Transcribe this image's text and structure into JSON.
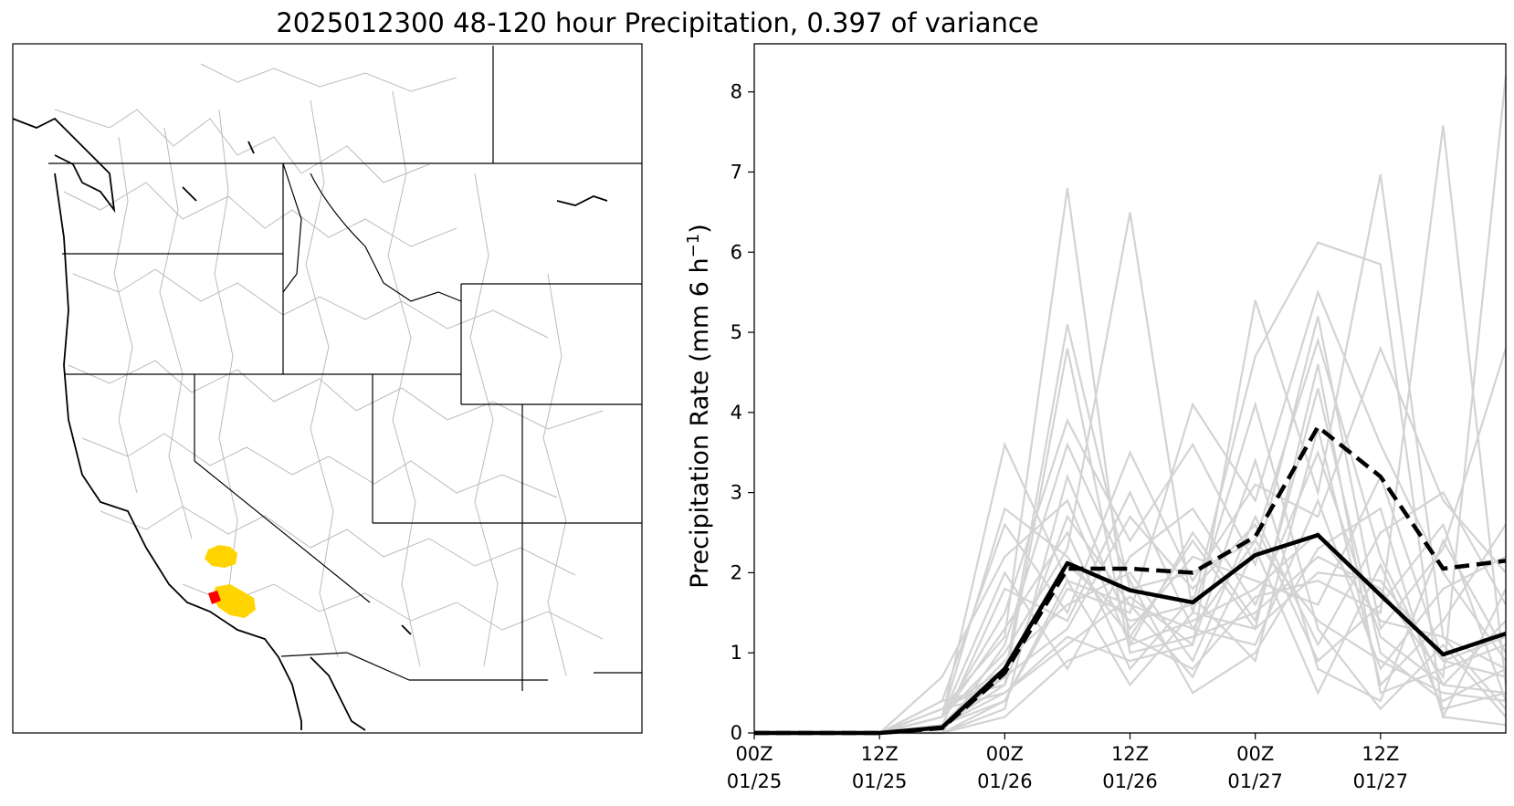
{
  "figure": {
    "title": "2025012300 48-120 hour Precipitation, 0.397 of variance"
  },
  "map": {
    "highlight_colors": {
      "primary": "#ffd400",
      "secondary": "#ff0000"
    },
    "line_colors": {
      "coast": "#000000",
      "basins": "#bbbbbb"
    }
  },
  "chart_data": {
    "type": "line",
    "ylabel": "Precipitation Rate (mm 6 h",
    "ylabel_sup": "−1",
    "ylabel_end": ")",
    "ylim": [
      0,
      8.6
    ],
    "xlim": [
      0,
      72
    ],
    "x": [
      0,
      6,
      12,
      18,
      24,
      30,
      36,
      42,
      48,
      54,
      60,
      66,
      72
    ],
    "yticks": [
      "0",
      "1",
      "2",
      "3",
      "4",
      "5",
      "6",
      "7",
      "8"
    ],
    "xticks": [
      {
        "x": 0,
        "line1": "00Z",
        "line2": "01/25"
      },
      {
        "x": 12,
        "line1": "12Z",
        "line2": "01/25"
      },
      {
        "x": 24,
        "line1": "00Z",
        "line2": "01/26"
      },
      {
        "x": 36,
        "line1": "12Z",
        "line2": "01/26"
      },
      {
        "x": 48,
        "line1": "00Z",
        "line2": "01/27"
      },
      {
        "x": 60,
        "line1": "12Z",
        "line2": "01/27"
      }
    ],
    "series": [
      {
        "role": "ensemble-mean",
        "style": "solid",
        "color": "#000000",
        "values": [
          0,
          0,
          0,
          0.07,
          0.8,
          2.12,
          1.78,
          1.63,
          2.22,
          2.47,
          1.72,
          0.98,
          1.24
        ]
      },
      {
        "role": "ensemble-observed",
        "style": "dashed",
        "color": "#000000",
        "values": [
          0,
          0,
          0,
          0.06,
          0.75,
          2.05,
          2.05,
          2.0,
          2.45,
          3.82,
          3.2,
          2.05,
          2.15
        ]
      }
    ],
    "member_color": "#d3d3d3",
    "members": [
      [
        0,
        0,
        0,
        0.2,
        3.6,
        1.9,
        1.6,
        1.3,
        2.4,
        1.4,
        0.9,
        0.5,
        0.4
      ],
      [
        0,
        0,
        0,
        0.3,
        1.2,
        6.8,
        1.1,
        1.4,
        1.8,
        2.5,
        1.4,
        1.2,
        0.8
      ],
      [
        0,
        0,
        0,
        0.1,
        0.7,
        5.1,
        1.8,
        2.0,
        2.4,
        4.9,
        2.2,
        0.6,
        0.5
      ],
      [
        0,
        0,
        0,
        0.2,
        1.0,
        2.3,
        6.5,
        1.5,
        1.3,
        2.0,
        1.9,
        0.9,
        1.2
      ],
      [
        0,
        0,
        0,
        0.0,
        0.4,
        1.8,
        1.5,
        4.1,
        2.9,
        5.5,
        3.6,
        2.0,
        0.9
      ],
      [
        0,
        0,
        0,
        0.1,
        0.5,
        1.2,
        0.9,
        1.1,
        5.4,
        3.0,
        6.97,
        1.2,
        0.3
      ],
      [
        0,
        0,
        0,
        0.3,
        0.8,
        2.1,
        1.4,
        1.6,
        4.7,
        6.12,
        5.85,
        0.2,
        0.1
      ],
      [
        0,
        0,
        0,
        0.0,
        0.2,
        0.9,
        1.2,
        0.8,
        1.7,
        1.9,
        1.5,
        7.58,
        0.6
      ],
      [
        0,
        0,
        0,
        0.1,
        0.6,
        4.8,
        1.0,
        1.2,
        1.5,
        2.2,
        1.8,
        0.7,
        8.2
      ],
      [
        0,
        0,
        0,
        0.2,
        1.5,
        3.9,
        2.4,
        3.6,
        2.1,
        5.2,
        1.3,
        2.3,
        4.8
      ],
      [
        0,
        0,
        0,
        0.4,
        2.6,
        1.5,
        3.5,
        1.9,
        3.1,
        2.7,
        4.8,
        2.9,
        2.0
      ],
      [
        0,
        0,
        0,
        0.7,
        2.2,
        2.9,
        1.1,
        2.5,
        1.4,
        4.3,
        1.0,
        0.4,
        0.8
      ],
      [
        0,
        0,
        0,
        0.1,
        0.9,
        1.6,
        2.0,
        0.9,
        2.7,
        1.1,
        2.5,
        3.0,
        1.6
      ],
      [
        0,
        0,
        0,
        0.2,
        1.3,
        2.5,
        0.8,
        1.7,
        0.9,
        3.8,
        0.6,
        1.4,
        2.6
      ],
      [
        0,
        0,
        0,
        0.3,
        0.5,
        1.1,
        1.7,
        1.1,
        3.4,
        0.8,
        0.4,
        2.4,
        1.0
      ],
      [
        0,
        0,
        0,
        0.0,
        0.3,
        3.2,
        1.3,
        2.2,
        1.9,
        1.6,
        3.2,
        0.9,
        0.7
      ],
      [
        0,
        0,
        0,
        0.1,
        1.8,
        1.4,
        3.0,
        1.3,
        1.1,
        2.9,
        0.8,
        1.8,
        2.2
      ],
      [
        0,
        0,
        0,
        0.4,
        0.6,
        2.7,
        1.6,
        0.7,
        2.3,
        0.5,
        2.1,
        0.3,
        0.5
      ],
      [
        0,
        0,
        0,
        0.2,
        2.0,
        0.8,
        2.2,
        2.8,
        1.6,
        3.5,
        1.2,
        0.6,
        1.4
      ],
      [
        0,
        0,
        0,
        0.1,
        0.4,
        1.9,
        0.6,
        1.5,
        4.1,
        1.3,
        0.3,
        1.1,
        0.2
      ],
      [
        0,
        0,
        0,
        0.0,
        1.1,
        3.6,
        1.9,
        0.5,
        1.0,
        2.3,
        2.8,
        0.2,
        1.8
      ],
      [
        0,
        0,
        0,
        0.3,
        0.7,
        1.3,
        2.7,
        1.8,
        2.6,
        0.9,
        1.6,
        2.6,
        0.4
      ],
      [
        0,
        0,
        0,
        0.2,
        2.8,
        2.2,
        1.2,
        2.4,
        1.3,
        4.6,
        0.5,
        0.8,
        1.1
      ]
    ]
  }
}
